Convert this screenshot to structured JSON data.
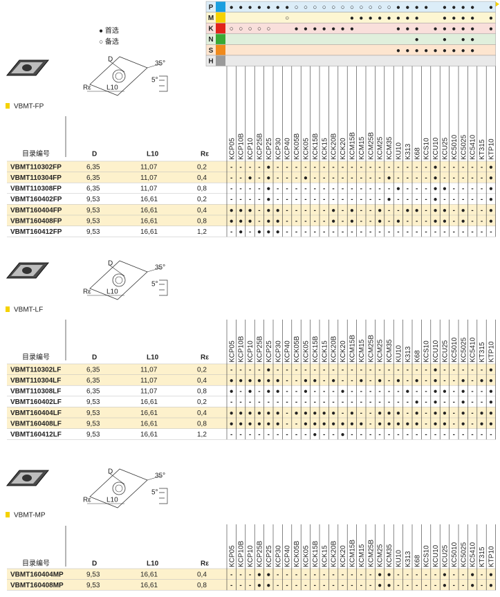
{
  "legend": {
    "preferred": "● 首选",
    "alternate": "○ 备选"
  },
  "diagram": {
    "d": "D",
    "l10": "L10",
    "re": "Rε",
    "angle1": "35°",
    "angle2": "5°"
  },
  "grades": [
    "KCP05",
    "KCP10B",
    "KCP10",
    "KCP25B",
    "KCP25",
    "KCP30",
    "KCP40",
    "KCK05B",
    "KCK05",
    "KCK15B",
    "KCK15",
    "KCK20B",
    "KCK20",
    "KCM15B",
    "KCM15",
    "KCM25B",
    "KCM25",
    "KCM35",
    "KU10",
    "K313",
    "K68",
    "KCS10",
    "KCU10",
    "KCU25",
    "KC5010",
    "KC5025",
    "KC5410",
    "KT315",
    "KTP10"
  ],
  "materials": [
    {
      "label": "P",
      "color": "#1a9fe0",
      "bg": "#dcedf8",
      "marks": "●●●●●●●○○○○○○○○○○○●●●● ●●●● ●●"
    },
    {
      "label": "M",
      "color": "#f5d200",
      "bg": "#fdf6d2",
      "marks": "      ○      ●●●●●●●●  ●●●● ●"
    },
    {
      "label": "K",
      "color": "#e2231a",
      "bg": "#f9dfdb",
      "marks": "○○○○○  ●●●●●●●    ●●● ●●●●● ●●"
    },
    {
      "label": "N",
      "color": "#3aa935",
      "bg": "#e0efdc",
      "marks": "                    ●  ● ●●  "
    },
    {
      "label": "S",
      "color": "#f08a1c",
      "bg": "#fde5cf",
      "marks": "                  ●●●●●●●●●  "
    },
    {
      "label": "H",
      "color": "#9a9a9a",
      "bg": "#e9e9e9",
      "marks": "                             "
    }
  ],
  "sections": [
    {
      "title": "VBMT-FP",
      "headers": [
        "目录编号",
        "D",
        "L10",
        "Rε"
      ],
      "rows": [
        {
          "code": "VBMT110302FP",
          "d": "6,35",
          "l10": "11,07",
          "re": "0,2",
          "highlight": true,
          "marks": "----●-----------------●-----●"
        },
        {
          "code": "VBMT110304FP",
          "d": "6,35",
          "l10": "11,07",
          "re": "0,4",
          "highlight": true,
          "marks": "--●-●---●--------●----●-----●"
        },
        {
          "code": "VBMT110308FP",
          "d": "6,35",
          "l10": "11,07",
          "re": "0,8",
          "highlight": false,
          "marks": "----●-------------●---●●----●"
        },
        {
          "code": "VBMT160402FP",
          "d": "9,53",
          "l10": "16,61",
          "re": "0,2",
          "highlight": false,
          "marks": "----●------------●----●-----●"
        },
        {
          "code": "VBMT160404FP",
          "d": "9,53",
          "l10": "16,61",
          "re": "0,4",
          "highlight": true,
          "marks": "●●●-●●-----●-●--●--●●-●●-●--●"
        },
        {
          "code": "VBMT160408FP",
          "d": "9,53",
          "l10": "16,61",
          "re": "0,8",
          "highlight": true,
          "marks": "●●●-●●-----●-●--●-●---●●-●--●"
        },
        {
          "code": "VBMT160412FP",
          "d": "9,53",
          "l10": "16,61",
          "re": "1,2",
          "highlight": false,
          "marks": "-●-●●●-----------------------"
        }
      ]
    },
    {
      "title": "VBMT-LF",
      "headers": [
        "目录编号",
        "D",
        "L10",
        "Rε"
      ],
      "rows": [
        {
          "code": "VBMT110302LF",
          "d": "6,35",
          "l10": "11,07",
          "re": "0,2",
          "highlight": true,
          "marks": "----●-----------------●-----●"
        },
        {
          "code": "VBMT110304LF",
          "d": "6,35",
          "l10": "11,07",
          "re": "0,4",
          "highlight": true,
          "marks": "●●●●●●--●●-●--●-●-●-●-●--●-●●"
        },
        {
          "code": "VBMT110308LF",
          "d": "6,35",
          "l10": "11,07",
          "re": "0,8",
          "highlight": false,
          "marks": "●-●-●●--●---●------●--●●-●--●"
        },
        {
          "code": "VBMT160402LF",
          "d": "9,53",
          "l10": "16,61",
          "re": "0,2",
          "highlight": false,
          "marks": "--------------------●-●--●--●"
        },
        {
          "code": "VBMT160404LF",
          "d": "9,53",
          "l10": "16,61",
          "re": "0,4",
          "highlight": true,
          "marks": "●●●●●●-●●●●●-●--●●●-●-●●-●-●●"
        },
        {
          "code": "VBMT160408LF",
          "d": "9,53",
          "l10": "16,61",
          "re": "0,8",
          "highlight": true,
          "marks": "●●●●●●--●●●●●●●-●●●●●-●●-●-●●"
        },
        {
          "code": "VBMT160412LF",
          "d": "9,53",
          "l10": "16,61",
          "re": "1,2",
          "highlight": false,
          "marks": "---------●--●----------------"
        }
      ]
    },
    {
      "title": "VBMT-MP",
      "headers": [
        "目录编号",
        "D",
        "L10",
        "Rε"
      ],
      "rows": [
        {
          "code": "VBMT160404MP",
          "d": "9,53",
          "l10": "16,61",
          "re": "0,4",
          "highlight": true,
          "marks": "---●●-----------●●-----●--●-●"
        },
        {
          "code": "VBMT160408MP",
          "d": "9,53",
          "l10": "16,61",
          "re": "0,8",
          "highlight": true,
          "marks": "---●●-----------●●-----●--●-●"
        }
      ]
    }
  ]
}
